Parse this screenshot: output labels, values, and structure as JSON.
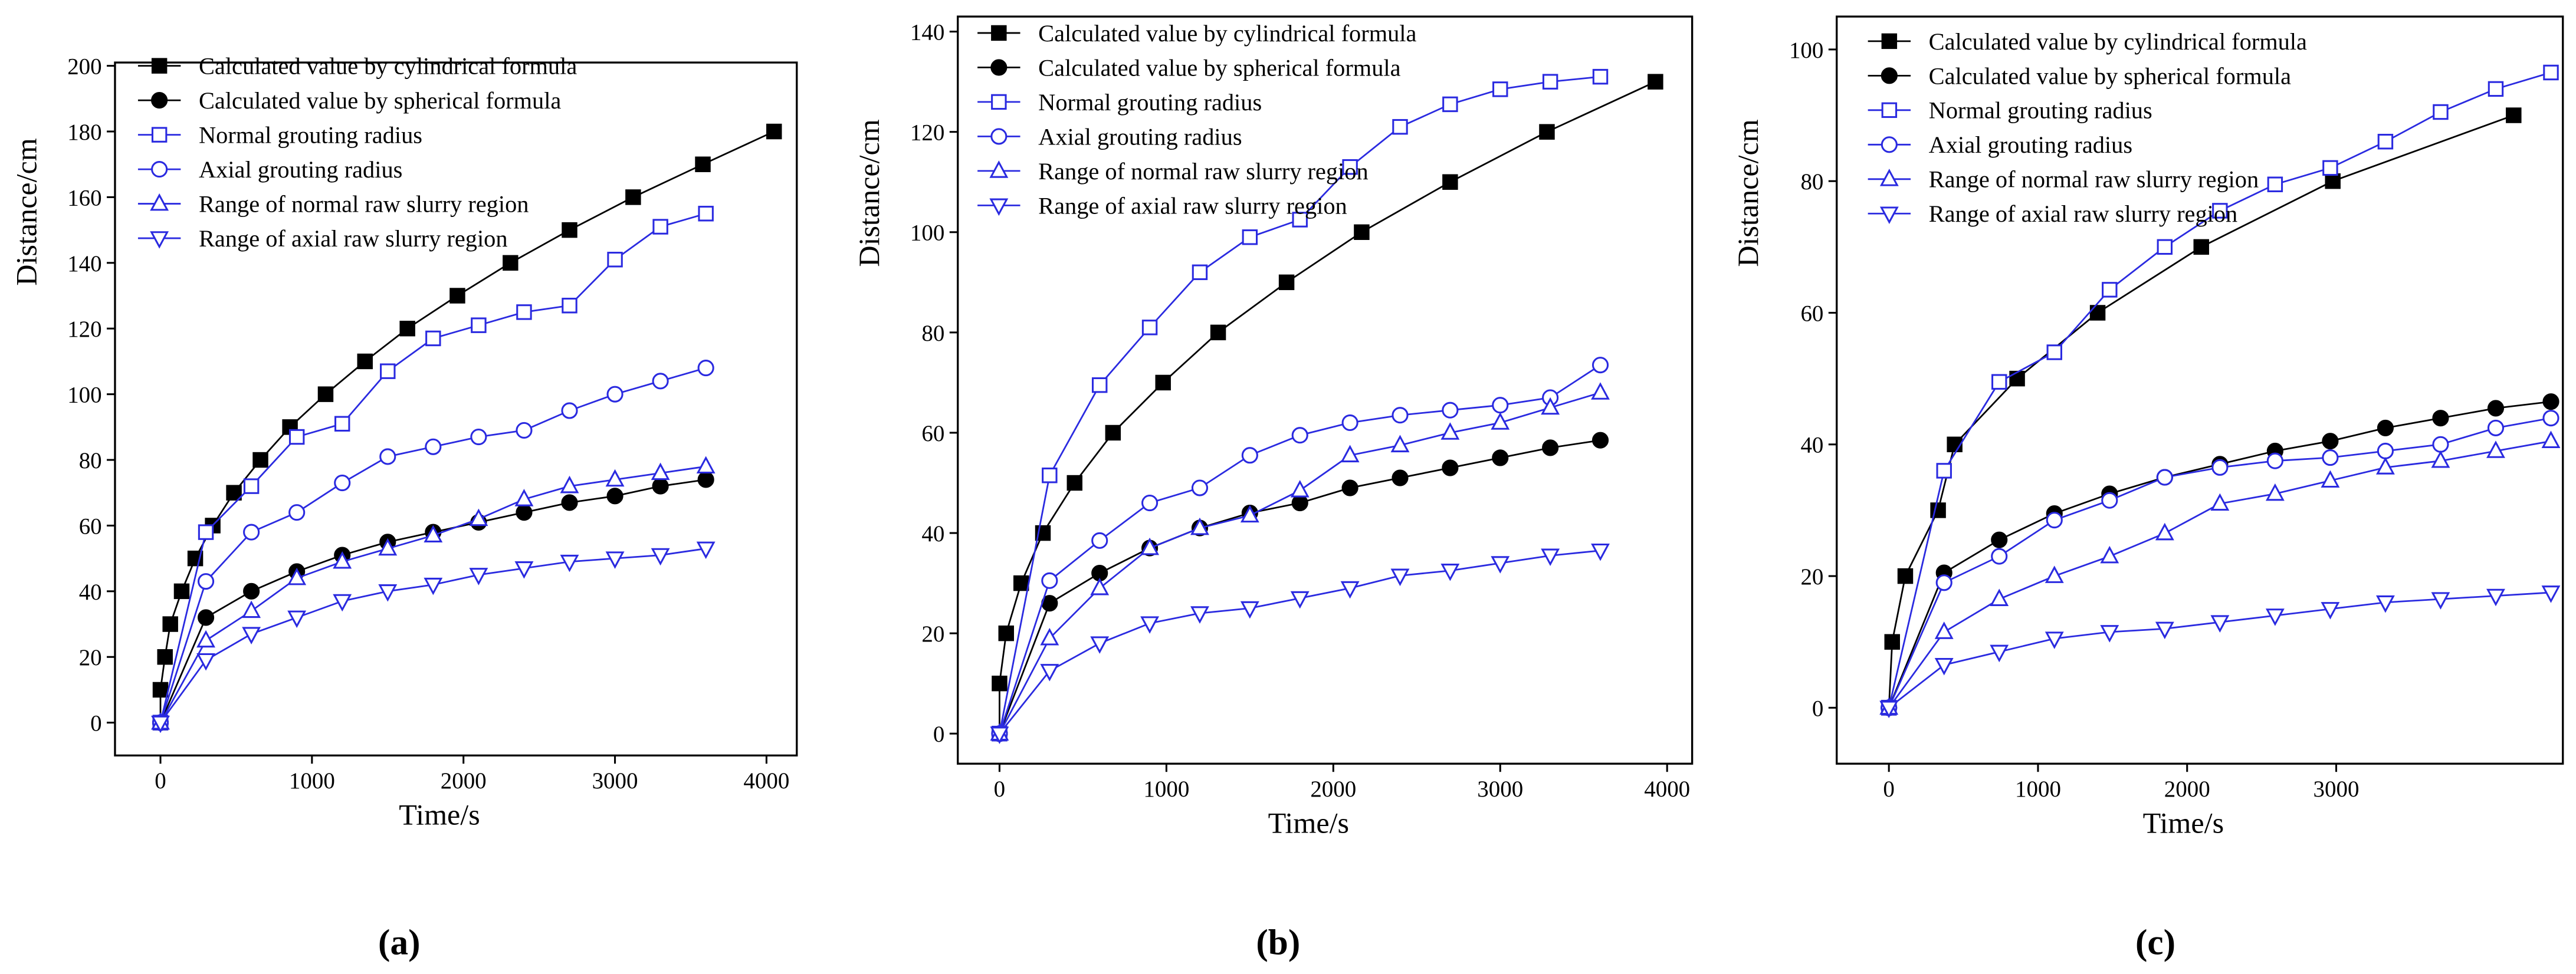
{
  "chart_data": [
    {
      "type": "line",
      "label": "(a)",
      "xlabel": "Time/s",
      "ylabel": "Distance/cm",
      "xlim": [
        -300,
        4200
      ],
      "ylim": [
        -10,
        201
      ],
      "xticks": [
        0,
        1000,
        2000,
        3000,
        4000
      ],
      "yticks": [
        0,
        20,
        40,
        60,
        80,
        100,
        120,
        140,
        160,
        180,
        200
      ],
      "series": [
        {
          "name": "Calculated value by cylindrical formula",
          "color": "#000000",
          "marker": "square-filled",
          "x": [
            0,
            0,
            30,
            65,
            140,
            230,
            345,
            485,
            660,
            855,
            1090,
            1350,
            1630,
            1960,
            2310,
            2700,
            3120,
            3580,
            4050
          ],
          "values": [
            0,
            10,
            20,
            30,
            40,
            50,
            60,
            70,
            80,
            90,
            100,
            110,
            120,
            130,
            140,
            150,
            160,
            170,
            180
          ]
        },
        {
          "name": "Calculated value by spherical formula",
          "color": "#000000",
          "marker": "circle-filled",
          "x": [
            0,
            300,
            600,
            900,
            1200,
            1500,
            1800,
            2100,
            2400,
            2700,
            3000,
            3300,
            3600
          ],
          "values": [
            0,
            32,
            40,
            46,
            51,
            55,
            58,
            61,
            64,
            67,
            69,
            72,
            74
          ]
        },
        {
          "name": "Normal grouting radius",
          "color": "#2a2ae0",
          "marker": "square",
          "x": [
            0,
            300,
            600,
            900,
            1200,
            1500,
            1800,
            2100,
            2400,
            2700,
            3000,
            3300,
            3600
          ],
          "values": [
            0,
            58,
            72,
            87,
            91,
            107,
            117,
            121,
            125,
            127,
            141,
            151,
            155
          ]
        },
        {
          "name": "Axial grouting radius",
          "color": "#2a2ae0",
          "marker": "circle",
          "x": [
            0,
            300,
            600,
            900,
            1200,
            1500,
            1800,
            2100,
            2400,
            2700,
            3000,
            3300,
            3600
          ],
          "values": [
            0,
            43,
            58,
            64,
            73,
            81,
            84,
            87,
            89,
            95,
            100,
            104,
            108
          ]
        },
        {
          "name": "Range of normal raw slurry region",
          "color": "#2a2ae0",
          "marker": "triangle-up",
          "x": [
            0,
            300,
            600,
            900,
            1200,
            1500,
            1800,
            2100,
            2400,
            2700,
            3000,
            3300,
            3600
          ],
          "values": [
            0,
            25,
            34,
            44,
            49,
            53,
            57,
            62,
            68,
            72,
            74,
            76,
            78
          ]
        },
        {
          "name": "Range of axial raw slurry region",
          "color": "#2a2ae0",
          "marker": "triangle-down",
          "x": [
            0,
            300,
            600,
            900,
            1200,
            1500,
            1800,
            2100,
            2400,
            2700,
            3000,
            3300,
            3600
          ],
          "values": [
            0,
            19,
            27,
            32,
            37,
            40,
            42,
            45,
            47,
            49,
            50,
            51,
            53
          ]
        }
      ]
    },
    {
      "type": "line",
      "label": "(b)",
      "xlabel": "Time/s",
      "ylabel": "Distance/cm",
      "xlim": [
        -250,
        4150
      ],
      "ylim": [
        -6,
        143
      ],
      "xticks": [
        0,
        1000,
        2000,
        3000,
        4000
      ],
      "yticks": [
        0,
        20,
        40,
        60,
        80,
        100,
        120,
        140
      ],
      "series": [
        {
          "name": "Calculated value by cylindrical formula",
          "color": "#000000",
          "marker": "square-filled",
          "x": [
            0,
            0,
            40,
            130,
            260,
            450,
            680,
            980,
            1310,
            1720,
            2170,
            2700,
            3280,
            3930
          ],
          "values": [
            0,
            10,
            20,
            30,
            40,
            50,
            60,
            70,
            80,
            90,
            100,
            110,
            120,
            130
          ]
        },
        {
          "name": "Calculated value by spherical formula",
          "color": "#000000",
          "marker": "circle-filled",
          "x": [
            0,
            300,
            600,
            900,
            1200,
            1500,
            1800,
            2100,
            2400,
            2700,
            3000,
            3300,
            3600
          ],
          "values": [
            0,
            26,
            32,
            37,
            41,
            44,
            46,
            49,
            51,
            53,
            55,
            57,
            58.5
          ]
        },
        {
          "name": "Normal grouting radius",
          "color": "#2a2ae0",
          "marker": "square",
          "x": [
            0,
            300,
            600,
            900,
            1200,
            1500,
            1800,
            2100,
            2400,
            2700,
            3000,
            3300,
            3600
          ],
          "values": [
            0,
            51.5,
            69.5,
            81,
            92,
            99,
            102.5,
            113,
            121,
            125.5,
            128.5,
            130,
            131
          ]
        },
        {
          "name": "Axial grouting radius",
          "color": "#2a2ae0",
          "marker": "circle",
          "x": [
            0,
            300,
            600,
            900,
            1200,
            1500,
            1800,
            2100,
            2400,
            2700,
            3000,
            3300,
            3600
          ],
          "values": [
            0,
            30.5,
            38.5,
            46,
            49,
            55.5,
            59.5,
            62,
            63.5,
            64.5,
            65.5,
            67,
            73.5
          ]
        },
        {
          "name": "Range of normal raw slurry region",
          "color": "#2a2ae0",
          "marker": "triangle-up",
          "x": [
            0,
            300,
            600,
            900,
            1200,
            1500,
            1800,
            2100,
            2400,
            2700,
            3000,
            3300,
            3600
          ],
          "values": [
            0,
            19,
            29,
            37,
            41,
            43.5,
            48.5,
            55.5,
            57.5,
            60,
            62,
            65,
            68
          ]
        },
        {
          "name": "Range of axial raw slurry region",
          "color": "#2a2ae0",
          "marker": "triangle-down",
          "x": [
            0,
            300,
            600,
            900,
            1200,
            1500,
            1800,
            2100,
            2400,
            2700,
            3000,
            3300,
            3600
          ],
          "values": [
            0,
            12.5,
            18,
            22,
            24,
            25,
            27,
            29,
            31.5,
            32.5,
            34,
            35.5,
            36.5
          ]
        }
      ]
    },
    {
      "type": "line",
      "label": "(c)",
      "xlabel": "Time/s",
      "ylabel": "Distance/cm",
      "xlim": [
        -350,
        4520
      ],
      "ylim": [
        -8.5,
        105
      ],
      "xticks": [
        0,
        1000,
        2000,
        3000
      ],
      "yticks": [
        0,
        20,
        40,
        60,
        80,
        100
      ],
      "series": [
        {
          "name": "Calculated value by cylindrical formula",
          "color": "#000000",
          "marker": "square-filled",
          "x": [
            0,
            22,
            110,
            330,
            441,
            860,
            1400,
            2095,
            2977,
            4190
          ],
          "values": [
            0,
            10,
            20,
            30,
            40,
            50,
            60,
            70,
            80,
            90
          ]
        },
        {
          "name": "Calculated value by spherical formula",
          "color": "#000000",
          "marker": "circle-filled",
          "x": [
            0,
            370,
            740,
            1110,
            1480,
            1850,
            2220,
            2590,
            2960,
            3330,
            3700,
            4070,
            4440
          ],
          "values": [
            0,
            20.5,
            25.5,
            29.5,
            32.5,
            35,
            37,
            39,
            40.5,
            42.5,
            44,
            45.5,
            46.5
          ]
        },
        {
          "name": "Normal grouting radius",
          "color": "#2a2ae0",
          "marker": "square",
          "x": [
            0,
            370,
            740,
            1110,
            1480,
            1850,
            2220,
            2590,
            2960,
            3330,
            3700,
            4070,
            4440
          ],
          "values": [
            0,
            36,
            49.5,
            54,
            63.5,
            70,
            75.5,
            79.5,
            82,
            86,
            90.5,
            94,
            96.5
          ]
        },
        {
          "name": "Axial grouting radius",
          "color": "#2a2ae0",
          "marker": "circle",
          "x": [
            0,
            370,
            740,
            1110,
            1480,
            1850,
            2220,
            2590,
            2960,
            3330,
            3700,
            4070,
            4440
          ],
          "values": [
            0,
            19,
            23,
            28.5,
            31.5,
            35,
            36.5,
            37.5,
            38,
            39,
            40,
            42.5,
            44
          ]
        },
        {
          "name": "Range of normal raw slurry region",
          "color": "#2a2ae0",
          "marker": "triangle-up",
          "x": [
            0,
            370,
            740,
            1110,
            1480,
            1850,
            2220,
            2590,
            2960,
            3330,
            3700,
            4070,
            4440
          ],
          "values": [
            0,
            11.5,
            16.5,
            20,
            23,
            26.5,
            31,
            32.5,
            34.5,
            36.5,
            37.5,
            39,
            40.5
          ]
        },
        {
          "name": "Range of axial raw slurry region",
          "color": "#2a2ae0",
          "marker": "triangle-down",
          "x": [
            0,
            370,
            740,
            1110,
            1480,
            1850,
            2220,
            2590,
            2960,
            3330,
            3700,
            4070,
            4440
          ],
          "values": [
            0,
            6.5,
            8.5,
            10.5,
            11.5,
            12,
            13,
            14,
            15,
            16,
            16.5,
            17,
            17.5
          ]
        }
      ]
    }
  ]
}
